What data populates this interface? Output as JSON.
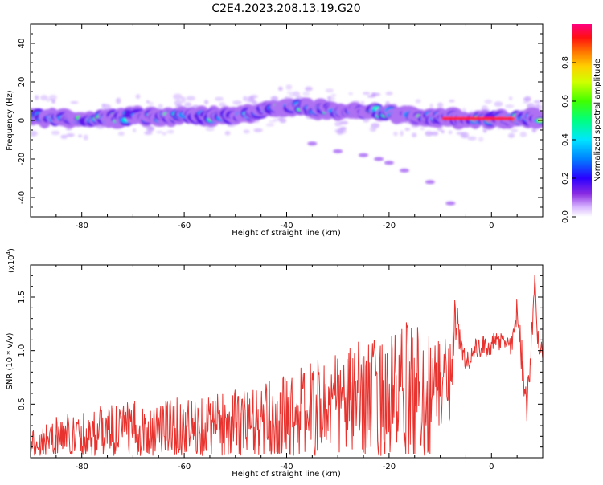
{
  "title": "C2E4.2023.208.13.19.G20",
  "colors": {
    "line": "#e8322e",
    "colormap": [
      "#ffffff",
      "#c9a6ff",
      "#8a2be2",
      "#1f00ff",
      "#00aaff",
      "#00ffd0",
      "#00ff00",
      "#aaff00",
      "#ffff00",
      "#ff9900",
      "#ff2020",
      "#ff0080"
    ]
  },
  "chart_data": [
    {
      "type": "heatmap",
      "xlabel": "Height of straight line (km)",
      "ylabel": "Frequency (Hz)",
      "xlim": [
        -90,
        10
      ],
      "ylim": [
        -50,
        50
      ],
      "xticks": [
        -80,
        -60,
        -40,
        -20,
        0
      ],
      "yticks": [
        -40,
        -20,
        0,
        20,
        40
      ],
      "colorbar": {
        "label": "Normalized spectral amplitude",
        "range": [
          0.0,
          1.0
        ],
        "ticks": [
          0.0,
          0.2,
          0.4,
          0.6,
          0.8
        ]
      },
      "ridge": {
        "x": [
          -90,
          -80,
          -70,
          -60,
          -50,
          -45,
          -40,
          -35,
          -30,
          -25,
          -20,
          -15,
          -10,
          -5,
          0,
          5,
          10
        ],
        "freq": [
          2,
          0,
          2,
          2,
          2,
          5,
          7,
          6,
          5,
          5,
          4,
          2,
          1,
          1,
          1,
          1,
          1
        ],
        "amplitude": [
          0.5,
          0.6,
          0.45,
          0.5,
          0.45,
          0.4,
          0.55,
          0.5,
          0.55,
          0.6,
          0.45,
          0.5,
          0.6,
          0.85,
          0.9,
          0.8,
          0.6
        ]
      },
      "weak_tail": {
        "x": [
          -35,
          -30,
          -25,
          -22,
          -20,
          -17,
          -12,
          -8
        ],
        "freq": [
          -12,
          -16,
          -18,
          -20,
          -22,
          -26,
          -32,
          -43
        ]
      }
    },
    {
      "type": "line",
      "xlabel": "Height of straight line (km)",
      "ylabel": "SNR (10 * v/v)",
      "multiplier_label": "(x10",
      "multiplier_exp": "4",
      "xlim": [
        -90,
        10
      ],
      "ylim": [
        0,
        1.8
      ],
      "xticks": [
        -80,
        -60,
        -40,
        -20,
        0
      ],
      "yticks": [
        0.5,
        1.0,
        1.5
      ],
      "ytick_labels": [
        "0.5",
        "1.0",
        "1.5"
      ],
      "envelope": {
        "x": [
          -90,
          -85,
          -80,
          -75,
          -70,
          -65,
          -60,
          -55,
          -50,
          -45,
          -40,
          -35,
          -30,
          -25,
          -20,
          -15,
          -12,
          -10,
          -8,
          -7,
          -6,
          -5,
          -3,
          0,
          2,
          4,
          5,
          6,
          7,
          8,
          8.5,
          9,
          10
        ],
        "mean": [
          0.12,
          0.2,
          0.22,
          0.25,
          0.26,
          0.28,
          0.27,
          0.3,
          0.32,
          0.32,
          0.4,
          0.45,
          0.5,
          0.55,
          0.55,
          0.62,
          0.6,
          0.7,
          0.75,
          1.35,
          1.0,
          0.9,
          1.0,
          1.05,
          1.1,
          1.05,
          1.4,
          0.9,
          0.5,
          1.2,
          1.75,
          1.1,
          0.95
        ],
        "spread": [
          0.15,
          0.18,
          0.22,
          0.25,
          0.27,
          0.3,
          0.28,
          0.3,
          0.32,
          0.35,
          0.4,
          0.45,
          0.5,
          0.55,
          0.6,
          0.7,
          0.6,
          0.45,
          0.4,
          0.25,
          0.15,
          0.12,
          0.12,
          0.1,
          0.1,
          0.1,
          0.12,
          0.2,
          0.2,
          0.15,
          0.05,
          0.15,
          0.1
        ]
      }
    }
  ]
}
